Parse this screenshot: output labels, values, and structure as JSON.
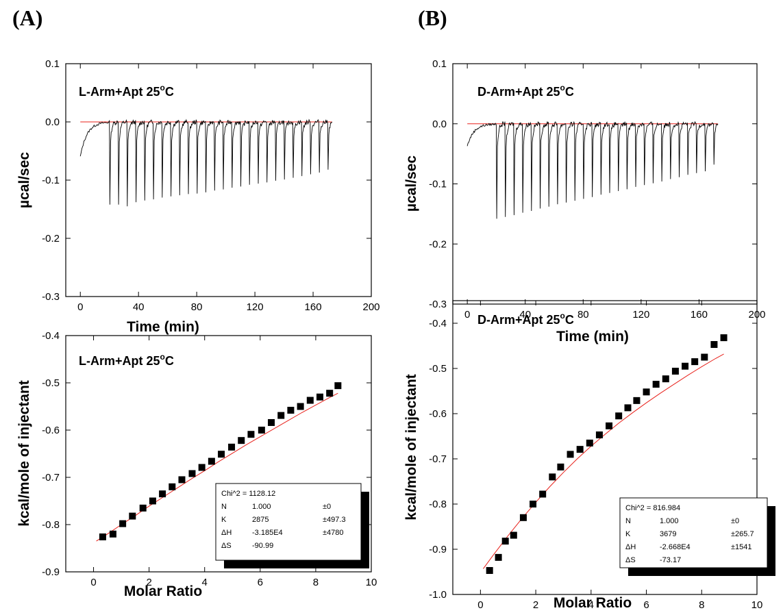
{
  "panels": [
    {
      "letter": "(A)",
      "title": ""
    },
    {
      "letter": "(B)",
      "title": ""
    }
  ],
  "chart_data": [
    {
      "id": "A-top",
      "panel": "(A)",
      "type": "line",
      "title": "",
      "xlabel": "Time (min)",
      "ylabel": "µcal/sec",
      "annotation": {
        "main": "L-Arm+Apt 25",
        "sup": "o",
        "tail": "C"
      },
      "xlim": [
        -10,
        200
      ],
      "ylim": [
        -0.3,
        0.1
      ],
      "xticks": [
        0,
        40,
        80,
        120,
        160,
        200
      ],
      "xticklabels": [
        "0",
        "40",
        "80",
        "120",
        "160",
        "200"
      ],
      "yticks": [
        -0.3,
        -0.2,
        -0.1,
        0.0,
        0.1
      ],
      "yticklabels": [
        "-0.3",
        "-0.2",
        "-0.1",
        "0.0",
        "0.1"
      ],
      "grid": false,
      "baseline": {
        "value": 0.0,
        "x": [
          0,
          173
        ],
        "color": "#e8201a"
      },
      "trace": {
        "start_x": 0,
        "start_y": -0.06,
        "end_x": 173,
        "injection_start": 20,
        "injection_interval": 6,
        "injection_count": 26,
        "peak_depths": [
          -0.142,
          -0.142,
          -0.145,
          -0.138,
          -0.135,
          -0.133,
          -0.13,
          -0.128,
          -0.126,
          -0.124,
          -0.123,
          -0.121,
          -0.118,
          -0.116,
          -0.113,
          -0.111,
          -0.108,
          -0.106,
          -0.104,
          -0.101,
          -0.099,
          -0.096,
          -0.093,
          -0.09,
          -0.087,
          -0.082
        ],
        "color": "#000000"
      }
    },
    {
      "id": "A-bottom",
      "panel": "(A)",
      "type": "scatter",
      "title": "",
      "xlabel": "Molar Ratio",
      "ylabel": "kcal/mole of injectant",
      "annotation": {
        "main": "L-Arm+Apt 25",
        "sup": "o",
        "tail": "C"
      },
      "xlim": [
        -1,
        10
      ],
      "ylim": [
        -0.9,
        -0.4
      ],
      "xticks": [
        0,
        2,
        4,
        6,
        8,
        10
      ],
      "xticklabels": [
        "0",
        "2",
        "4",
        "6",
        "8",
        "10"
      ],
      "yticks": [
        -0.9,
        -0.8,
        -0.7,
        -0.6,
        -0.5,
        -0.4
      ],
      "yticklabels": [
        "-0.9",
        "-0.8",
        "-0.7",
        "-0.6",
        "-0.5",
        "-0.4"
      ],
      "grid": false,
      "points": {
        "x": [
          0.33,
          0.7,
          1.05,
          1.4,
          1.78,
          2.13,
          2.48,
          2.83,
          3.18,
          3.55,
          3.9,
          4.25,
          4.6,
          4.97,
          5.32,
          5.67,
          6.05,
          6.4,
          6.75,
          7.1,
          7.45,
          7.8,
          8.15,
          8.5,
          8.8
        ],
        "y": [
          -0.826,
          -0.82,
          -0.798,
          -0.782,
          -0.765,
          -0.75,
          -0.735,
          -0.72,
          -0.705,
          -0.692,
          -0.679,
          -0.666,
          -0.651,
          -0.636,
          -0.622,
          -0.609,
          -0.6,
          -0.584,
          -0.569,
          -0.558,
          -0.55,
          -0.537,
          -0.53,
          -0.522,
          -0.506
        ]
      },
      "fit": {
        "x": [
          0.1,
          0.5,
          1.0,
          1.5,
          2.0,
          2.5,
          3.0,
          3.5,
          4.0,
          4.5,
          5.0,
          5.5,
          6.0,
          6.5,
          7.0,
          7.5,
          8.0,
          8.5,
          8.8
        ],
        "y": [
          -0.835,
          -0.82,
          -0.8,
          -0.781,
          -0.761,
          -0.742,
          -0.723,
          -0.704,
          -0.686,
          -0.667,
          -0.649,
          -0.631,
          -0.614,
          -0.597,
          -0.58,
          -0.563,
          -0.547,
          -0.531,
          -0.522
        ],
        "color": "#e8201a"
      },
      "stats_table": [
        {
          "label": "Chi^2 = 1128.12",
          "value": "",
          "error": ""
        },
        {
          "label": "N",
          "value": "1.000",
          "error": "±0"
        },
        {
          "label": "K",
          "value": "2875",
          "error": "±497.3"
        },
        {
          "label": "ΔH",
          "value": "-3.185E4",
          "error": "±4780"
        },
        {
          "label": "ΔS",
          "value": "-90.99",
          "error": ""
        }
      ]
    },
    {
      "id": "B-top",
      "panel": "(B)",
      "type": "line",
      "title": "",
      "xlabel": "Time (min)",
      "ylabel": "µcal/sec",
      "annotation": {
        "main": "D-Arm+Apt 25",
        "sup": "o",
        "tail": "C"
      },
      "xlim": [
        -10,
        200
      ],
      "ylim": [
        -0.3,
        0.1
      ],
      "xticks": [
        0,
        40,
        80,
        120,
        160,
        200
      ],
      "xticklabels": [
        "0",
        "40",
        "80",
        "120",
        "160",
        "200"
      ],
      "yticks": [
        -0.3,
        -0.2,
        -0.1,
        0.0,
        0.1
      ],
      "yticklabels": [
        "-0.3",
        "-0.2",
        "-0.1",
        "0.0",
        "0.1"
      ],
      "grid": false,
      "baseline": {
        "value": 0.0,
        "x": [
          0,
          173
        ],
        "color": "#e8201a"
      },
      "trace": {
        "start_x": 0,
        "start_y": -0.037,
        "end_x": 173,
        "injection_start": 20,
        "injection_interval": 6,
        "injection_count": 26,
        "peak_depths": [
          -0.158,
          -0.155,
          -0.152,
          -0.148,
          -0.145,
          -0.141,
          -0.138,
          -0.134,
          -0.131,
          -0.128,
          -0.125,
          -0.122,
          -0.118,
          -0.115,
          -0.112,
          -0.109,
          -0.105,
          -0.102,
          -0.099,
          -0.096,
          -0.092,
          -0.089,
          -0.085,
          -0.082,
          -0.079,
          -0.068
        ],
        "color": "#000000"
      }
    },
    {
      "id": "B-bottom",
      "panel": "(B)",
      "type": "scatter",
      "title": "",
      "xlabel": "Molar Ratio",
      "ylabel": "kcal/mole of injectant",
      "annotation": {
        "main": "D-Arm+Apt 25",
        "sup": "o",
        "tail": "C"
      },
      "xlim": [
        -1,
        10
      ],
      "ylim": [
        -1.0,
        -0.35
      ],
      "xticks": [
        0,
        2,
        4,
        6,
        8,
        10
      ],
      "xticklabels": [
        "0",
        "2",
        "4",
        "6",
        "8",
        "10"
      ],
      "yticks": [
        -1.0,
        -0.9,
        -0.8,
        -0.7,
        -0.6,
        -0.5,
        -0.4
      ],
      "yticklabels": [
        "-1.0",
        "-0.9",
        "-0.8",
        "-0.7",
        "-0.6",
        "-0.5",
        "-0.4"
      ],
      "grid": false,
      "points": {
        "x": [
          0.33,
          0.65,
          0.9,
          1.2,
          1.55,
          1.9,
          2.25,
          2.6,
          2.9,
          3.25,
          3.6,
          3.95,
          4.3,
          4.65,
          5.0,
          5.33,
          5.65,
          6.0,
          6.35,
          6.7,
          7.05,
          7.4,
          7.75,
          8.1,
          8.45,
          8.8
        ],
        "y": [
          -0.947,
          -0.918,
          -0.882,
          -0.869,
          -0.83,
          -0.8,
          -0.778,
          -0.74,
          -0.718,
          -0.69,
          -0.679,
          -0.665,
          -0.647,
          -0.627,
          -0.605,
          -0.587,
          -0.571,
          -0.552,
          -0.535,
          -0.523,
          -0.506,
          -0.495,
          -0.485,
          -0.475,
          -0.447,
          -0.432
        ]
      },
      "fit": {
        "x": [
          0.1,
          0.5,
          1.0,
          1.5,
          2.0,
          2.5,
          3.0,
          3.5,
          4.0,
          4.5,
          5.0,
          5.5,
          6.0,
          6.5,
          7.0,
          7.5,
          8.0,
          8.5,
          8.8
        ],
        "y": [
          -0.943,
          -0.91,
          -0.87,
          -0.832,
          -0.796,
          -0.762,
          -0.73,
          -0.7,
          -0.672,
          -0.646,
          -0.621,
          -0.598,
          -0.576,
          -0.555,
          -0.535,
          -0.515,
          -0.496,
          -0.478,
          -0.468
        ],
        "color": "#e8201a"
      },
      "stats_table": [
        {
          "label": "Chi^2 = 816.984",
          "value": "",
          "error": ""
        },
        {
          "label": "N",
          "value": "1.000",
          "error": "±0"
        },
        {
          "label": "K",
          "value": "3679",
          "error": "±265.7"
        },
        {
          "label": "ΔH",
          "value": "-2.668E4",
          "error": "±1541"
        },
        {
          "label": "ΔS",
          "value": "-73.17",
          "error": ""
        }
      ]
    }
  ]
}
